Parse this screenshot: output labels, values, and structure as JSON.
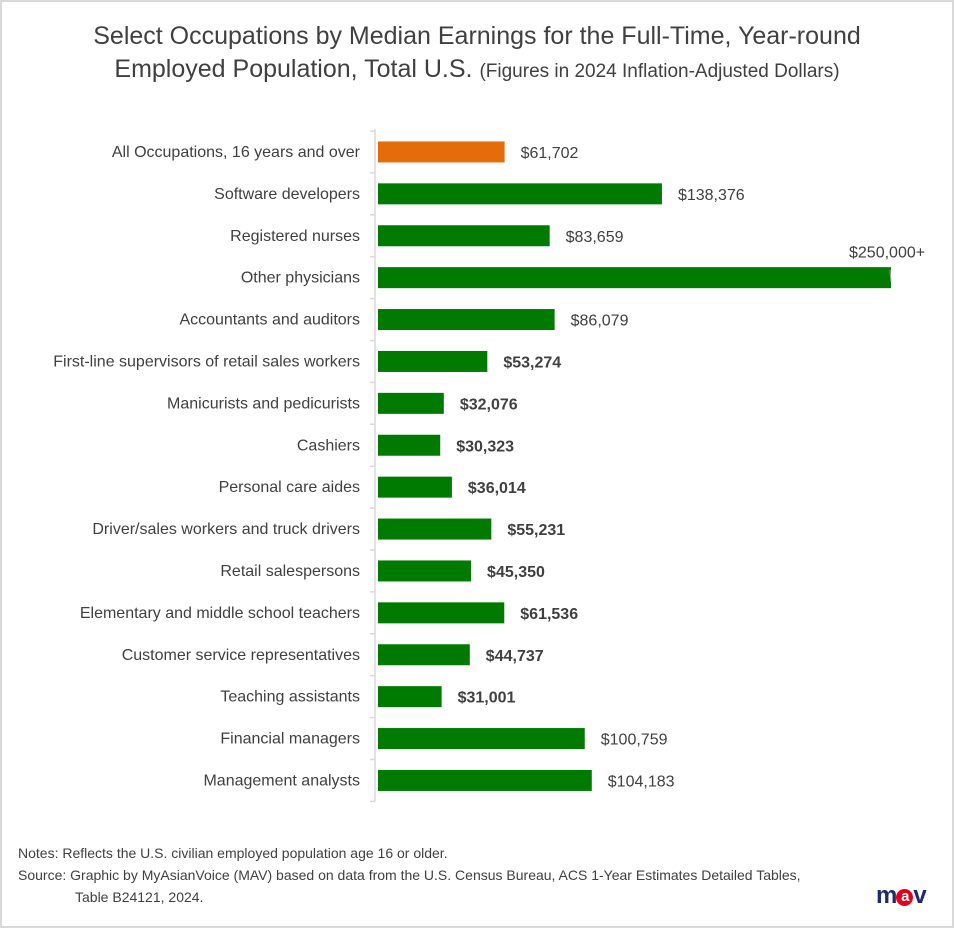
{
  "title": {
    "main_line1": "Select Occupations by Median Earnings for the Full-Time, Year-round",
    "main_line2": "Employed Population, Total U.S.",
    "subtitle": "(Figures in 2024 Inflation-Adjusted Dollars)"
  },
  "chart_data": {
    "type": "bar",
    "orientation": "horizontal",
    "title": "Select Occupations by Median Earnings for the Full-Time, Year-round Employed Population, Total U.S. (Figures in 2024 Inflation-Adjusted Dollars)",
    "xlim": [
      0,
      250000
    ],
    "grid": false,
    "categories": [
      "All Occupations, 16 years and over",
      "Software developers",
      "Registered nurses",
      "Other physicians",
      "Accountants and auditors",
      "First-line supervisors of retail sales workers",
      "Manicurists and pedicurists",
      "Cashiers",
      "Personal care aides",
      "Driver/sales workers and truck drivers",
      "Retail salespersons",
      "Elementary and middle school teachers",
      "Customer service representatives",
      "Teaching assistants",
      "Financial managers",
      "Management analysts"
    ],
    "values": [
      61702,
      138376,
      83659,
      250000,
      86079,
      53274,
      32076,
      30323,
      36014,
      55231,
      45350,
      61536,
      44737,
      31001,
      100759,
      104183
    ],
    "data_labels": [
      "$61,702",
      "$138,376",
      "$83,659",
      "$250,000+",
      "$86,079",
      "$53,274",
      "$32,076",
      "$30,323",
      "$36,014",
      "$55,231",
      "$45,350",
      "$61,536",
      "$44,737",
      "$31,001",
      "$100,759",
      "$104,183"
    ],
    "bold_labels": [
      false,
      false,
      false,
      false,
      false,
      true,
      true,
      true,
      true,
      true,
      true,
      true,
      true,
      true,
      false,
      false
    ],
    "highlight_index": 0,
    "colors": {
      "highlight": "#E46C0A",
      "bar": "#007A00",
      "text": "#404040"
    }
  },
  "notes": {
    "notes": "Notes:  Reflects the U.S. civilian employed population age 16 or older.",
    "source_line1": "Source: Graphic by MyAsianVoice (MAV) based on data from the U.S. Census Bureau, ACS 1-Year Estimates Detailed Tables,",
    "source_line2": "Table B24121, 2024."
  },
  "logo": {
    "text": "mav"
  }
}
